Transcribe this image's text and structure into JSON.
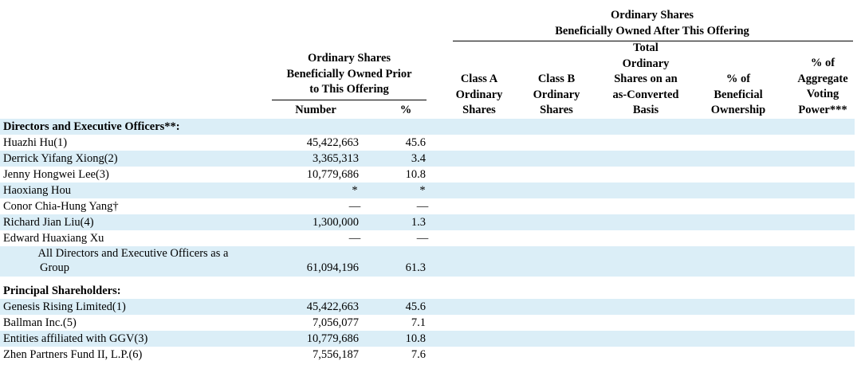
{
  "header": {
    "after_group": [
      "Ordinary Shares",
      "Beneficially Owned After This Offering"
    ],
    "prior_group": [
      "Ordinary Shares",
      "Beneficially Owned Prior",
      "to This Offering"
    ],
    "col_number": "Number",
    "col_pct": "%",
    "col_class_a": [
      "Class A",
      "Ordinary",
      "Shares"
    ],
    "col_class_b": [
      "Class B",
      "Ordinary",
      "Shares"
    ],
    "col_total": [
      "Total",
      "Ordinary",
      "Shares on an",
      "as-Converted",
      "Basis"
    ],
    "col_beneficial": [
      "% of",
      "Beneficial",
      "Ownership"
    ],
    "col_voting": [
      "% of",
      "Aggregate",
      "Voting",
      "Power***"
    ]
  },
  "sections": {
    "directors_title": "Directors and Executive Officers**:",
    "principal_title": "Principal Shareholders:"
  },
  "directors": [
    {
      "name": "Huazhi Hu(1)",
      "number": "45,422,663",
      "pct": "45.6"
    },
    {
      "name": "Derrick Yifang Xiong(2)",
      "number": "3,365,313",
      "pct": "3.4"
    },
    {
      "name": "Jenny Hongwei Lee(3)",
      "number": "10,779,686",
      "pct": "10.8"
    },
    {
      "name": "Haoxiang Hou",
      "number": "*",
      "pct": "*"
    },
    {
      "name": "Conor Chia-Hung Yang†",
      "number": "—",
      "pct": "—"
    },
    {
      "name": "Richard Jian Liu(4)",
      "number": "1,300,000",
      "pct": "1.3"
    },
    {
      "name": "Edward Huaxiang Xu",
      "number": "—",
      "pct": "—"
    }
  ],
  "group_total": {
    "name_line1": "All Directors and Executive Officers as a",
    "name_line2": "Group",
    "number": "61,094,196",
    "pct": "61.3"
  },
  "principals": [
    {
      "name": "Genesis Rising Limited(1)",
      "number": "45,422,663",
      "pct": "45.6"
    },
    {
      "name": "Ballman Inc.(5)",
      "number": "7,056,077",
      "pct": "7.1"
    },
    {
      "name": "Entities affiliated with GGV(3)",
      "number": "10,779,686",
      "pct": "10.8"
    },
    {
      "name": "Zhen Partners Fund II, L.P.(6)",
      "number": "7,556,187",
      "pct": "7.6"
    }
  ]
}
